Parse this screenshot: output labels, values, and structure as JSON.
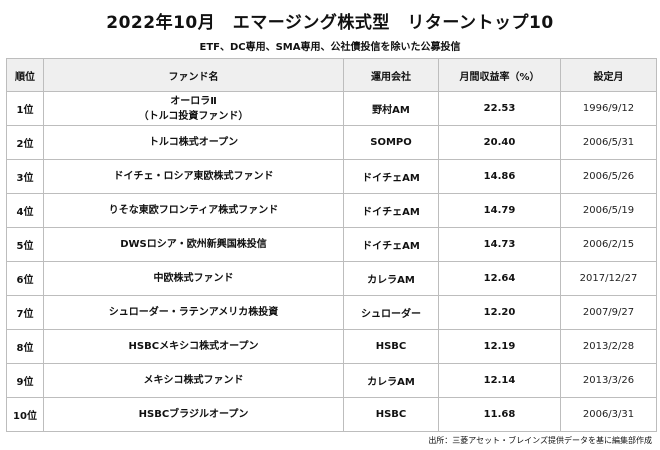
{
  "title": "2022年10月　エマージング株式型　リターントップ10",
  "subtitle": "ETF、DC専用、SMA専用、公社債投信を除いた公募投信",
  "headers": {
    "rank": "順位",
    "fund": "ファンド名",
    "company": "運用会社",
    "return": "月間収益率（%）",
    "date": "設定月"
  },
  "rows": [
    {
      "rank": "1位",
      "name": [
        "オーロラⅡ",
        "（トルコ投資ファンド）"
      ],
      "company": "野村AM",
      "return": "22.53",
      "date": "1996/9/12"
    },
    {
      "rank": "2位",
      "name": [
        "トルコ株式オープン"
      ],
      "company": "SOMPO",
      "return": "20.40",
      "date": "2006/5/31"
    },
    {
      "rank": "3位",
      "name": [
        "ドイチェ・ロシア東欧株式ファンド"
      ],
      "company": "ドイチェAM",
      "return": "14.86",
      "date": "2006/5/26"
    },
    {
      "rank": "4位",
      "name": [
        "りそな東欧フロンティア株式ファンド"
      ],
      "company": "ドイチェAM",
      "return": "14.79",
      "date": "2006/5/19"
    },
    {
      "rank": "5位",
      "name": [
        "DWSロシア・欧州新興国株投信"
      ],
      "company": "ドイチェAM",
      "return": "14.73",
      "date": "2006/2/15"
    },
    {
      "rank": "6位",
      "name": [
        "中欧株式ファンド"
      ],
      "company": "カレラAM",
      "return": "12.64",
      "date": "2017/12/27"
    },
    {
      "rank": "7位",
      "name": [
        "シュローダー・ラテンアメリカ株投資"
      ],
      "company": "シュローダー",
      "return": "12.20",
      "date": "2007/9/27"
    },
    {
      "rank": "8位",
      "name": [
        "HSBCメキシコ株式オープン"
      ],
      "company": "HSBC",
      "return": "12.19",
      "date": "2013/2/28"
    },
    {
      "rank": "9位",
      "name": [
        "メキシコ株式ファンド"
      ],
      "company": "カレラAM",
      "return": "12.14",
      "date": "2013/3/26"
    },
    {
      "rank": "10位",
      "name": [
        "HSBCブラジルオープン"
      ],
      "company": "HSBC",
      "return": "11.68",
      "date": "2006/3/31"
    }
  ],
  "source": "出所：三菱アセット・ブレインズ提供データを基に編集部作成"
}
